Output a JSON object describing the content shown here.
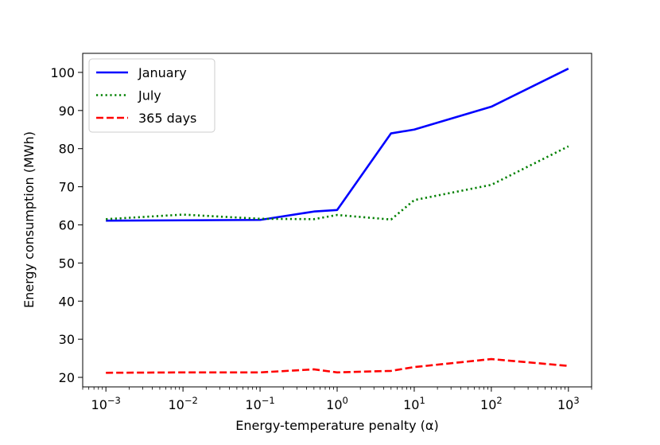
{
  "chart_data": {
    "type": "line",
    "title": "",
    "xlabel": "Energy-temperature penalty (α)",
    "ylabel": "Energy consumption (MWh)",
    "xscale": "log",
    "xlim": [
      0.0005,
      2000
    ],
    "ylim": [
      17.5,
      105
    ],
    "x_ticks": [
      {
        "value": 0.001,
        "base": "10",
        "exp": "−3"
      },
      {
        "value": 0.01,
        "base": "10",
        "exp": "−2"
      },
      {
        "value": 0.1,
        "base": "10",
        "exp": "−1"
      },
      {
        "value": 1,
        "base": "10",
        "exp": "0"
      },
      {
        "value": 10,
        "base": "10",
        "exp": "1"
      },
      {
        "value": 100,
        "base": "10",
        "exp": "2"
      },
      {
        "value": 1000,
        "base": "10",
        "exp": "3"
      }
    ],
    "y_ticks": [
      20,
      30,
      40,
      50,
      60,
      70,
      80,
      90,
      100
    ],
    "grid": false,
    "legend_position": "top-left",
    "series": [
      {
        "name": "January",
        "color": "#0000ff",
        "style": "solid",
        "points": [
          [
            0.001,
            61.1
          ],
          [
            0.01,
            61.2
          ],
          [
            0.1,
            61.3
          ],
          [
            0.5,
            63.5
          ],
          [
            1,
            63.9
          ],
          [
            5,
            84.0
          ],
          [
            10,
            85.0
          ],
          [
            100,
            91.0
          ],
          [
            1000,
            101.0
          ]
        ]
      },
      {
        "name": "July",
        "color": "#008000",
        "style": "dotted",
        "points": [
          [
            0.001,
            61.5
          ],
          [
            0.01,
            62.7
          ],
          [
            0.1,
            61.6
          ],
          [
            0.5,
            61.5
          ],
          [
            1,
            62.6
          ],
          [
            5,
            61.4
          ],
          [
            10,
            66.5
          ],
          [
            100,
            70.5
          ],
          [
            1000,
            80.6
          ]
        ]
      },
      {
        "name": "365 days",
        "color": "#ff0000",
        "style": "dashed",
        "points": [
          [
            0.001,
            21.2
          ],
          [
            0.01,
            21.3
          ],
          [
            0.1,
            21.3
          ],
          [
            0.5,
            22.1
          ],
          [
            1,
            21.3
          ],
          [
            5,
            21.7
          ],
          [
            10,
            22.7
          ],
          [
            100,
            24.8
          ],
          [
            1000,
            23.0
          ]
        ]
      }
    ]
  }
}
